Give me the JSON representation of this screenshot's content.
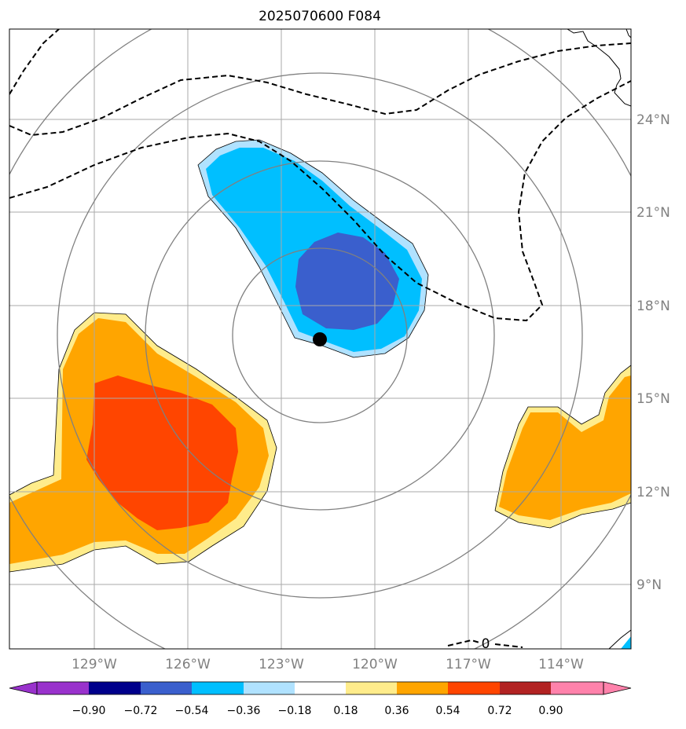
{
  "title": "2025070600 F084",
  "map": {
    "lon_ticks": [
      "129°W",
      "126°W",
      "123°W",
      "120°W",
      "117°W",
      "114°W"
    ],
    "lat_ticks": [
      "24°N",
      "21°N",
      "18°N",
      "15°N",
      "12°N",
      "9°N"
    ],
    "contour_label": "0",
    "storm_center": {
      "lat": 16.9,
      "lon": -121.8
    },
    "colors": {
      "grid": "#aaaaaa",
      "range_rings": "#808080",
      "tick_label": "#808080"
    }
  },
  "colorbar": {
    "ticks": [
      "−0.90",
      "−0.72",
      "−0.54",
      "−0.36",
      "−0.18",
      "0.18",
      "0.36",
      "0.54",
      "0.72",
      "0.90"
    ],
    "colors": [
      "#9932cc",
      "#00008b",
      "#3a5fcd",
      "#00bfff",
      "#b0e2ff",
      "#ffffff",
      "#ffec8b",
      "#ffa500",
      "#ff4500",
      "#b22222",
      "#ff82ab"
    ]
  }
}
